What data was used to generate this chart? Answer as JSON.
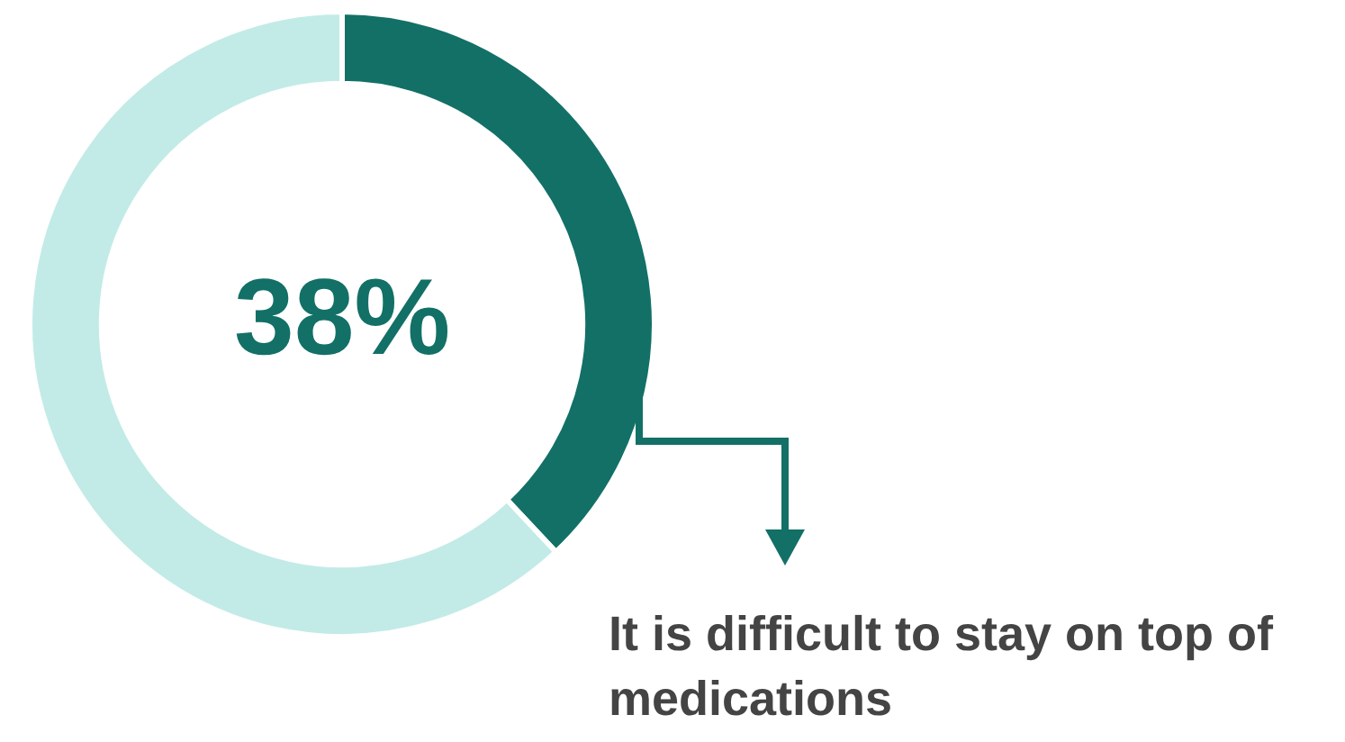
{
  "chart_data": {
    "type": "donut",
    "categories": [
      "It is difficult to stay on top of medications",
      null
    ],
    "values": [
      38,
      62
    ],
    "colors": [
      "#127067",
      "#c2ebe8"
    ],
    "value_labels": [
      "38%",
      null
    ],
    "legend": "bottom right"
  }
}
